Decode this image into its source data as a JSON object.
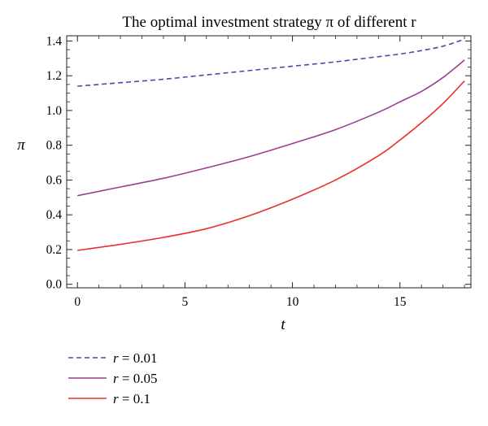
{
  "chart_data": {
    "type": "line",
    "title": "The optimal investment strategy π of different r",
    "xlabel": "t",
    "ylabel": "π",
    "xlim": [
      -0.5,
      18.3
    ],
    "ylim": [
      -0.02,
      1.43
    ],
    "xticks": [
      0,
      5,
      10,
      15
    ],
    "xtick_labels": [
      "0",
      "5",
      "10",
      "15"
    ],
    "yticks": [
      0.0,
      0.2,
      0.4,
      0.6,
      0.8,
      1.0,
      1.2,
      1.4
    ],
    "ytick_labels": [
      "0.0",
      "0.2",
      "0.4",
      "0.6",
      "0.8",
      "1.0",
      "1.2",
      "1.4"
    ],
    "grid": false,
    "legend_position": "bottom-left, below plot",
    "series": [
      {
        "name": "r = 0.01",
        "var": "r",
        "value_text": "= 0.01",
        "color": "#4a4aa8",
        "dash": "dashed",
        "x": [
          0,
          2,
          4,
          6,
          8,
          10,
          12,
          14,
          15,
          16,
          17,
          18
        ],
        "y": [
          1.14,
          1.16,
          1.18,
          1.205,
          1.23,
          1.255,
          1.28,
          1.31,
          1.325,
          1.345,
          1.37,
          1.41
        ]
      },
      {
        "name": "r = 0.05",
        "var": "r",
        "value_text": "= 0.05",
        "color": "#9b3f93",
        "dash": "solid",
        "x": [
          0,
          2,
          4,
          6,
          8,
          10,
          12,
          14,
          15,
          16,
          17,
          18
        ],
        "y": [
          0.51,
          0.56,
          0.61,
          0.67,
          0.735,
          0.81,
          0.89,
          0.99,
          1.05,
          1.11,
          1.19,
          1.29
        ]
      },
      {
        "name": "r = 0.1",
        "var": "r",
        "value_text": "= 0.1",
        "color": "#e8302a",
        "dash": "solid",
        "x": [
          0,
          2,
          4,
          6,
          8,
          10,
          12,
          14,
          15,
          16,
          17,
          18
        ],
        "y": [
          0.195,
          0.23,
          0.27,
          0.32,
          0.395,
          0.49,
          0.6,
          0.74,
          0.83,
          0.93,
          1.04,
          1.17
        ]
      }
    ]
  }
}
